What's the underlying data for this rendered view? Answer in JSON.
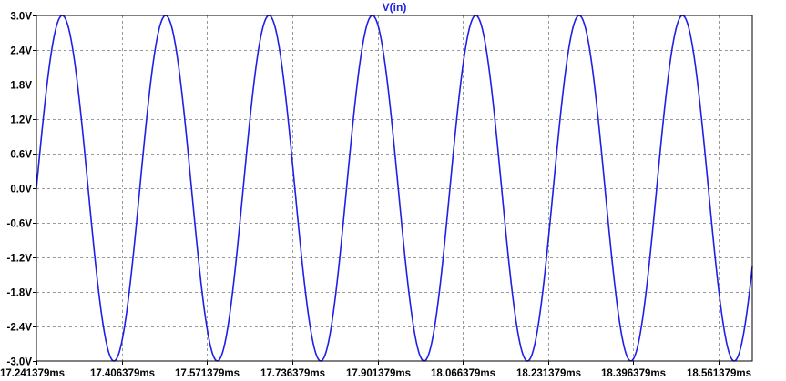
{
  "chart_data": {
    "type": "line",
    "title": "V(in)",
    "xlabel": "",
    "ylabel": "",
    "grid": true,
    "x_unit": "ms",
    "y_unit": "V",
    "xlim": [
      17.241379,
      18.626379
    ],
    "ylim": [
      -3.0,
      3.0
    ],
    "x_ticks": [
      17.241379,
      17.406379,
      17.571379,
      17.736379,
      17.901379,
      18.066379,
      18.231379,
      18.396379,
      18.561379
    ],
    "x_tick_labels": [
      "17.241379ms",
      "17.406379ms",
      "17.571379ms",
      "17.736379ms",
      "17.901379ms",
      "18.066379ms",
      "18.231379ms",
      "18.396379ms",
      "18.561379ms"
    ],
    "y_ticks": [
      3.0,
      2.4,
      1.8,
      1.2,
      0.6,
      0.0,
      -0.6,
      -1.2,
      -1.8,
      -2.4,
      -3.0
    ],
    "y_tick_labels": [
      "3.0V",
      "2.4V",
      "1.8V",
      "1.2V",
      "0.6V",
      "0.0V",
      "-0.6V",
      "-1.2V",
      "-1.8V",
      "-2.4V",
      "-3.0V"
    ],
    "series": [
      {
        "name": "V(in)",
        "color": "#1f1fe6",
        "x": [
          17.241379,
          17.266379,
          17.291379,
          17.316379,
          17.341379,
          17.366379,
          17.391379,
          17.416379,
          17.441379,
          17.466379,
          17.491379,
          17.516379,
          17.541379,
          17.566379,
          17.591379,
          17.616379,
          17.641379,
          17.666379,
          17.691379,
          17.716379,
          17.741379,
          17.766379,
          17.791379,
          17.816379,
          17.841379,
          17.866379,
          17.891379,
          17.916379,
          17.941379,
          17.966379,
          17.991379,
          18.016379,
          18.041379,
          18.066379,
          18.091379,
          18.116379,
          18.141379,
          18.166379,
          18.191379,
          18.216379,
          18.241379,
          18.266379,
          18.291379,
          18.316379,
          18.341379,
          18.366379,
          18.391379,
          18.416379,
          18.441379,
          18.466379,
          18.491379,
          18.516379,
          18.541379,
          18.566379,
          18.591379,
          18.616379,
          18.626379
        ],
        "y": [
          0.0,
          1.85,
          2.85,
          2.85,
          1.85,
          0.0,
          -1.85,
          -2.85,
          -2.85,
          -1.85,
          0.0,
          1.85,
          2.85,
          2.85,
          1.85,
          0.0,
          -1.85,
          -2.85,
          -2.85,
          -1.85,
          0.0,
          1.85,
          2.85,
          2.85,
          1.85,
          0.0,
          -1.85,
          -2.85,
          -2.85,
          -1.85,
          0.0,
          1.85,
          2.85,
          2.85,
          1.85,
          0.0,
          -1.85,
          -2.85,
          -2.85,
          -1.85,
          0.0,
          1.85,
          2.85,
          2.85,
          1.85,
          0.0,
          -1.85,
          -2.85,
          -2.85,
          -1.85,
          0.0,
          1.85,
          2.85,
          2.85,
          1.85,
          0.0,
          -1.1
        ],
        "model": {
          "shape": "sine",
          "amplitude": 3.0,
          "frequency_kHz": 5.0,
          "phase_zero_at_ms": 17.241379
        }
      }
    ]
  }
}
